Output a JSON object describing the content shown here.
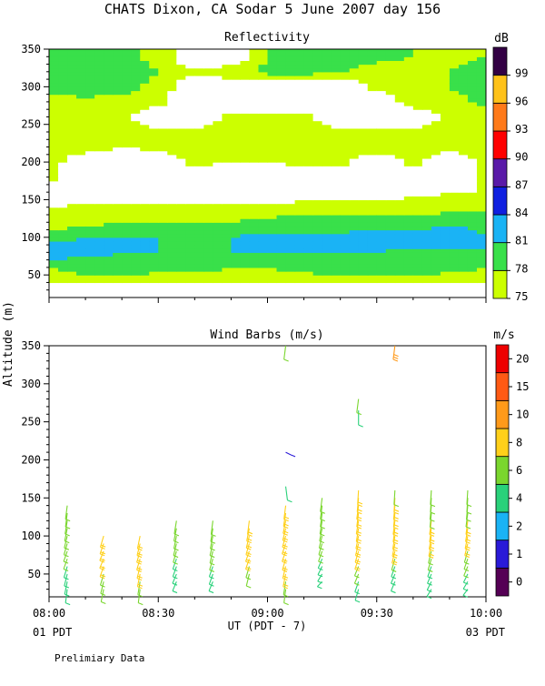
{
  "title": "CHATS Dixon, CA  Sodar   5 June 2007  day 156",
  "footer_note": "Prelimiary Data",
  "colors": {
    "white_background": "#ffffff",
    "frame": "#000000"
  },
  "chart_data": [
    {
      "type": "heatmap",
      "title": "Reflectivity",
      "colorbar_unit": "dB",
      "xlim": [
        "08:00",
        "10:00"
      ],
      "ylim": [
        20,
        350
      ],
      "yticks": [
        50,
        100,
        150,
        200,
        250,
        300,
        350
      ],
      "colorbar_levels": [
        75,
        78,
        81,
        84,
        87,
        90,
        93,
        96,
        99
      ],
      "colorbar_colors": [
        "#ccff00",
        "#39e04a",
        "#1ab3f5",
        "#1020e0",
        "#5a1aa8",
        "#ff0000",
        "#ff7a1a",
        "#ffc21a",
        "#330044"
      ],
      "times": [
        "08:00",
        "08:10",
        "08:20",
        "08:30",
        "08:40",
        "08:50",
        "09:00",
        "09:10",
        "09:20",
        "09:30",
        "09:40",
        "09:50",
        "10:00"
      ],
      "heights": [
        40,
        60,
        80,
        100,
        120,
        140,
        160,
        180,
        200,
        220,
        240,
        260,
        280,
        300,
        320,
        340,
        350
      ],
      "values": [
        [
          76,
          77,
          77,
          76,
          76,
          76,
          76,
          76,
          77,
          77,
          77,
          76,
          76
        ],
        [
          78,
          79,
          79,
          79,
          79,
          78,
          78,
          79,
          79,
          79,
          79,
          79,
          78
        ],
        [
          83,
          82,
          81,
          81,
          80,
          81,
          81,
          81,
          81,
          81,
          80,
          80,
          81
        ],
        [
          80,
          81,
          81,
          81,
          81,
          81,
          82,
          82,
          82,
          83,
          83,
          84,
          81
        ],
        [
          76,
          77,
          78,
          78,
          78,
          78,
          79,
          79,
          79,
          79,
          79,
          80,
          80
        ],
        [
          75,
          76,
          76,
          76,
          76,
          76,
          76,
          77,
          77,
          77,
          77,
          77,
          77
        ],
        [
          72,
          72,
          72,
          73,
          73,
          72,
          72,
          72,
          73,
          73,
          74,
          75,
          75
        ],
        [
          76,
          72,
          72,
          72,
          72,
          72,
          72,
          72,
          72,
          72,
          72,
          72,
          76
        ],
        [
          76,
          73,
          72,
          72,
          76,
          75,
          75,
          76,
          76,
          72,
          76,
          72,
          76
        ],
        [
          77,
          76,
          75,
          76,
          77,
          76,
          76,
          76,
          76,
          77,
          76,
          76,
          77
        ],
        [
          76,
          76,
          76,
          76,
          76,
          76,
          76,
          76,
          76,
          76,
          76,
          76,
          76
        ],
        [
          76,
          77,
          76,
          72,
          72,
          76,
          76,
          76,
          72,
          72,
          72,
          76,
          77
        ],
        [
          77,
          77,
          77,
          76,
          72,
          72,
          72,
          72,
          72,
          72,
          77,
          76,
          79
        ],
        [
          79,
          80,
          79,
          77,
          72,
          72,
          72,
          72,
          72,
          76,
          77,
          78,
          81
        ],
        [
          80,
          81,
          80,
          78,
          76,
          77,
          79,
          79,
          78,
          76,
          77,
          78,
          79
        ],
        [
          80,
          80,
          79,
          77,
          72,
          72,
          78,
          80,
          80,
          79,
          78,
          77,
          78
        ],
        [
          79,
          80,
          79,
          77,
          72,
          72,
          78,
          80,
          80,
          79,
          78,
          77,
          78
        ]
      ]
    },
    {
      "type": "scatter",
      "title": "Wind Barbs (m/s)",
      "colorbar_unit": "m/s",
      "ylabel": "Altitude (m)",
      "xlabel": "UT  (PDT - 7)",
      "x_start_label": "01 PDT",
      "x_end_label": "03 PDT",
      "xlim": [
        "08:00",
        "10:00"
      ],
      "ylim": [
        20,
        350
      ],
      "xtick_labels": [
        "08:00",
        "08:30",
        "09:00",
        "09:30",
        "10:00"
      ],
      "yticks": [
        50,
        100,
        150,
        200,
        250,
        300,
        350
      ],
      "colorbar_ticks": [
        0,
        1,
        2,
        4,
        6,
        8,
        10,
        15,
        20
      ],
      "colorbar_colors": [
        "#550055",
        "#2a1ad8",
        "#1ab3f5",
        "#29d17a",
        "#7ad62e",
        "#ffd01a",
        "#ff9a1a",
        "#ff5a14",
        "#ee0000"
      ],
      "profiles": [
        {
          "time": "08:05",
          "heights": [
            30,
            40,
            50,
            60,
            70,
            80,
            90,
            100,
            110,
            120,
            130,
            140
          ],
          "speeds": [
            4,
            4,
            5,
            5,
            6,
            6,
            6,
            6,
            6,
            6,
            6,
            6
          ],
          "dirs": [
            200,
            210,
            215,
            220,
            225,
            225,
            220,
            215,
            210,
            205,
            200,
            200
          ]
        },
        {
          "time": "08:15",
          "heights": [
            30,
            40,
            50,
            60,
            70,
            80,
            90,
            100
          ],
          "speeds": [
            6,
            6,
            7,
            8,
            8,
            8,
            8,
            8
          ],
          "dirs": [
            210,
            215,
            220,
            225,
            230,
            230,
            225,
            220
          ]
        },
        {
          "time": "08:25",
          "heights": [
            30,
            40,
            50,
            60,
            70,
            80,
            90,
            100
          ],
          "speeds": [
            6,
            7,
            8,
            8,
            8,
            8,
            8,
            8
          ],
          "dirs": [
            200,
            205,
            210,
            215,
            220,
            220,
            215,
            210
          ]
        },
        {
          "time": "08:35",
          "heights": [
            40,
            50,
            60,
            70,
            80,
            90,
            100,
            110,
            120
          ],
          "speeds": [
            4,
            4,
            5,
            5,
            6,
            6,
            6,
            6,
            6
          ],
          "dirs": [
            230,
            230,
            225,
            225,
            220,
            215,
            210,
            210,
            205
          ]
        },
        {
          "time": "08:45",
          "heights": [
            40,
            50,
            60,
            70,
            80,
            90,
            100,
            110,
            120
          ],
          "speeds": [
            4,
            5,
            5,
            6,
            6,
            6,
            6,
            6,
            6
          ],
          "dirs": [
            230,
            225,
            225,
            220,
            215,
            215,
            210,
            205,
            200
          ]
        },
        {
          "time": "08:55",
          "heights": [
            50,
            60,
            70,
            80,
            90,
            100,
            110,
            120
          ],
          "speeds": [
            6,
            7,
            8,
            8,
            8,
            8,
            8,
            8
          ],
          "dirs": [
            215,
            220,
            225,
            225,
            220,
            215,
            210,
            200
          ]
        },
        {
          "time": "09:05",
          "heights": [
            30,
            40,
            50,
            60,
            70,
            80,
            90,
            100,
            110,
            120,
            130,
            140,
            165,
            210,
            350
          ],
          "speeds": [
            6,
            7,
            8,
            8,
            8,
            9,
            9,
            8,
            8,
            8,
            9,
            8,
            4,
            1,
            7
          ],
          "dirs": [
            200,
            205,
            210,
            215,
            220,
            225,
            225,
            220,
            215,
            210,
            205,
            200,
            160,
            100,
            200
          ]
        },
        {
          "time": "09:15",
          "heights": [
            40,
            50,
            60,
            70,
            80,
            90,
            100,
            110,
            120,
            130,
            140,
            150
          ],
          "speeds": [
            4,
            4,
            5,
            5,
            6,
            6,
            6,
            6,
            6,
            6,
            6,
            6
          ],
          "dirs": [
            250,
            240,
            235,
            230,
            225,
            220,
            215,
            210,
            205,
            200,
            200,
            200
          ]
        },
        {
          "time": "09:25",
          "heights": [
            30,
            40,
            50,
            60,
            70,
            80,
            90,
            100,
            110,
            120,
            130,
            140,
            150,
            160,
            265,
            280
          ],
          "speeds": [
            4,
            5,
            6,
            7,
            8,
            8,
            8,
            8,
            8,
            8,
            8,
            8,
            9,
            8,
            5,
            6
          ],
          "dirs": [
            220,
            225,
            230,
            230,
            225,
            220,
            215,
            210,
            205,
            205,
            200,
            200,
            195,
            190,
            180,
            200
          ]
        },
        {
          "time": "09:35",
          "heights": [
            40,
            50,
            60,
            70,
            80,
            90,
            100,
            110,
            120,
            130,
            140,
            150,
            160,
            350
          ],
          "speeds": [
            4,
            4,
            5,
            6,
            8,
            8,
            8,
            8,
            8,
            8,
            8,
            8,
            7,
            14
          ],
          "dirs": [
            230,
            230,
            225,
            220,
            215,
            210,
            205,
            200,
            200,
            195,
            195,
            190,
            190,
            200
          ]
        },
        {
          "time": "09:45",
          "heights": [
            30,
            40,
            50,
            60,
            70,
            80,
            90,
            100,
            110,
            120,
            130,
            140,
            150,
            160
          ],
          "speeds": [
            4,
            4,
            5,
            5,
            6,
            6,
            8,
            8,
            8,
            8,
            6,
            6,
            6,
            6
          ],
          "dirs": [
            240,
            235,
            230,
            225,
            220,
            215,
            210,
            205,
            200,
            200,
            195,
            195,
            190,
            190
          ]
        },
        {
          "time": "09:55",
          "heights": [
            30,
            40,
            50,
            60,
            70,
            80,
            90,
            100,
            110,
            120,
            130,
            140,
            150,
            160
          ],
          "speeds": [
            4,
            5,
            5,
            6,
            6,
            6,
            8,
            8,
            8,
            8,
            6,
            6,
            6,
            6
          ],
          "dirs": [
            245,
            240,
            235,
            230,
            225,
            220,
            215,
            210,
            205,
            200,
            200,
            195,
            190,
            190
          ]
        }
      ]
    }
  ]
}
